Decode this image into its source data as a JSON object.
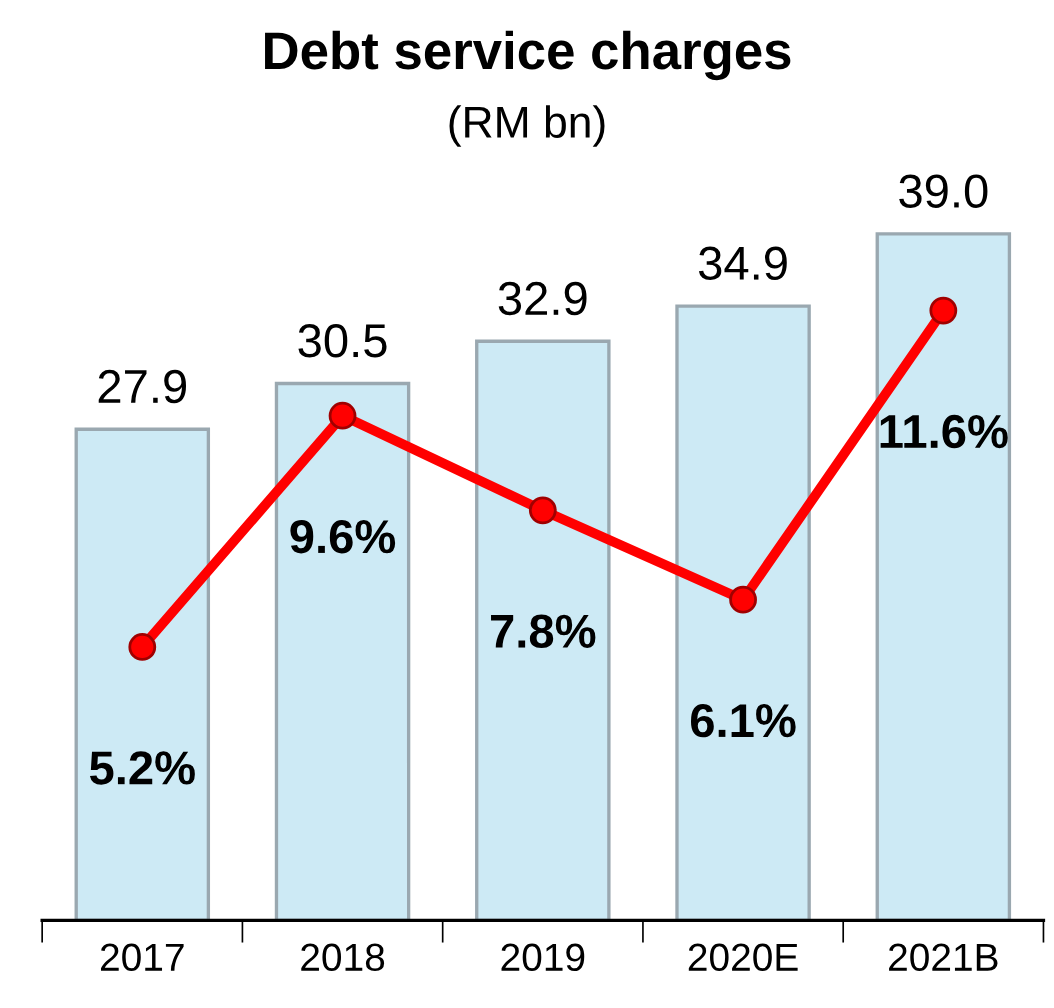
{
  "chart_data": {
    "type": "bar",
    "title": "Debt service charges",
    "subtitle": "(RM bn)",
    "categories": [
      "2017",
      "2018",
      "2019",
      "2020E",
      "2021B"
    ],
    "series": [
      {
        "color": "#cdeaf5",
        "values": [
          27.9,
          30.5,
          32.9,
          34.9,
          39.0
        ],
        "value_labels": [
          "27.9",
          "30.5",
          "32.9",
          "34.9",
          "39.0"
        ]
      },
      {
        "type": "line",
        "axis": "y2",
        "color": "#ff0000",
        "marker": "circle",
        "values": [
          5.2,
          9.6,
          7.8,
          6.1,
          11.6
        ],
        "value_labels": [
          "5.2%",
          "9.6%",
          "7.8%",
          "6.1%",
          "11.6%"
        ]
      }
    ]
  }
}
